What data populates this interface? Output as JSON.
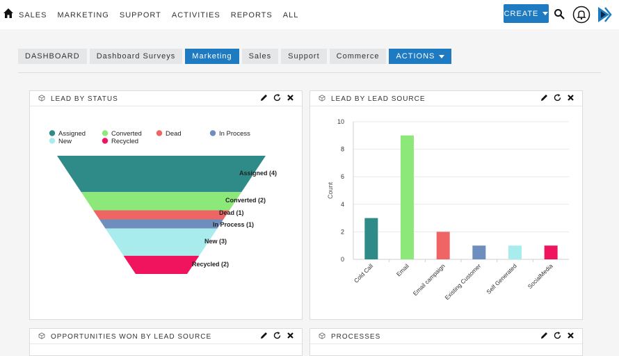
{
  "nav": {
    "items": [
      "SALES",
      "MARKETING",
      "SUPPORT",
      "ACTIVITIES",
      "REPORTS",
      "ALL"
    ],
    "create_label": "CREATE"
  },
  "tabs": [
    "DASHBOARD",
    "Dashboard Surveys",
    "Marketing",
    "Sales",
    "Support",
    "Commerce"
  ],
  "active_tab": "Marketing",
  "actions_label": "ACTIONS",
  "colors": {
    "accent": "#1f7bc1",
    "assigned": "#2e8b87",
    "converted": "#8de87a",
    "dead": "#ef6464",
    "in_process": "#6e8fbd",
    "new": "#a8eced",
    "recycled": "#f0145e"
  },
  "panels": {
    "lead_by_status": {
      "title": "LEAD BY STATUS"
    },
    "lead_by_source": {
      "title": "LEAD BY LEAD SOURCE"
    },
    "opps_won": {
      "title": "OPPORTUNITIES WON BY LEAD SOURCE"
    },
    "processes": {
      "title": "PROCESSES"
    }
  },
  "chart_data": [
    {
      "type": "funnel",
      "legend": [
        "Assigned",
        "Converted",
        "Dead",
        "In Process",
        "New",
        "Recycled"
      ],
      "categories": [
        "Assigned",
        "Converted",
        "Dead",
        "In Process",
        "New",
        "Recycled"
      ],
      "values": [
        4,
        2,
        1,
        1,
        3,
        2
      ],
      "data_labels": [
        "Assigned (4)",
        "Converted (2)",
        "Dead (1)",
        "In Process (1)",
        "New (3)",
        "Recycled (2)"
      ]
    },
    {
      "type": "bar",
      "categories": [
        "Cold Call",
        "Email",
        "Email campaign",
        "Existing Customer",
        "Self Generated",
        "SocialMedia"
      ],
      "values": [
        3,
        9,
        2,
        1,
        1,
        1
      ],
      "ylabel": "Count",
      "ylim": [
        0,
        10
      ],
      "yticks": [
        0,
        2,
        4,
        6,
        8,
        10
      ],
      "grid": true
    }
  ]
}
